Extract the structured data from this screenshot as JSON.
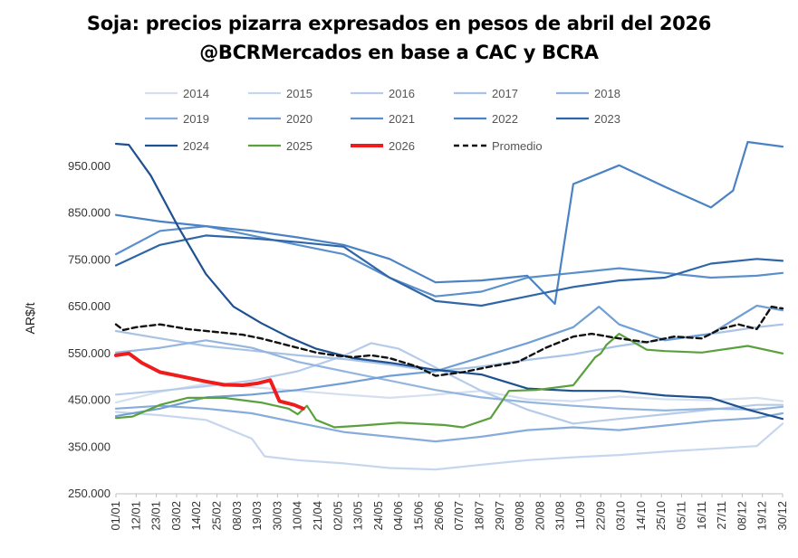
{
  "title_line1": "Soja: precios pizarra  expresados en pesos de abril del 2026",
  "title_line2": "@BCRMercados en base a CAC y BCRA",
  "chart_data": {
    "type": "line",
    "title": "Soja: precios pizarra  expresados en pesos de abril del 2026 @BCRMercados en base a CAC y BCRA",
    "xlabel": "",
    "ylabel": "AR$/t",
    "ylim": [
      250000,
      1000000
    ],
    "yticks": [
      {
        "value": 250000,
        "label": "250.000"
      },
      {
        "value": 350000,
        "label": "350.000"
      },
      {
        "value": 450000,
        "label": "450.000"
      },
      {
        "value": 550000,
        "label": "550.000"
      },
      {
        "value": 650000,
        "label": "650.000"
      },
      {
        "value": 750000,
        "label": "750.000"
      },
      {
        "value": 850000,
        "label": "850.000"
      },
      {
        "value": 950000,
        "label": "950.000"
      }
    ],
    "x_tick_labels": [
      "01/01",
      "12/01",
      "23/01",
      "03/02",
      "14/02",
      "25/02",
      "08/03",
      "19/03",
      "30/03",
      "10/04",
      "21/04",
      "02/05",
      "13/05",
      "24/05",
      "04/06",
      "15/06",
      "26/06",
      "07/07",
      "18/07",
      "29/07",
      "09/08",
      "20/08",
      "31/08",
      "11/09",
      "22/09",
      "03/10",
      "14/10",
      "25/10",
      "05/11",
      "16/11",
      "27/11",
      "08/12",
      "19/12",
      "30/12"
    ],
    "x_day_of_year": [
      1,
      12,
      23,
      34,
      45,
      56,
      67,
      78,
      89,
      100,
      111,
      122,
      133,
      144,
      155,
      166,
      177,
      188,
      199,
      210,
      221,
      232,
      243,
      254,
      265,
      276,
      287,
      298,
      309,
      320,
      331,
      342,
      353,
      364
    ],
    "series": [
      {
        "name": "2014",
        "color": "#d4dff0",
        "x": [
          1,
          25,
          50,
          75,
          100,
          125,
          150,
          175,
          200,
          225,
          250,
          275,
          300,
          325,
          350,
          364
        ],
        "values": [
          445000,
          468000,
          485000,
          478000,
          470000,
          462000,
          455000,
          462000,
          470000,
          452000,
          448000,
          458000,
          452000,
          450000,
          455000,
          448000
        ]
      },
      {
        "name": "2015",
        "color": "#c6d6ee",
        "x": [
          1,
          25,
          50,
          75,
          82,
          100,
          125,
          150,
          175,
          200,
          225,
          250,
          275,
          300,
          325,
          350,
          364
        ],
        "values": [
          425000,
          418000,
          408000,
          368000,
          330000,
          322000,
          315000,
          305000,
          302000,
          312000,
          322000,
          328000,
          333000,
          340000,
          346000,
          352000,
          400000
        ]
      },
      {
        "name": "2016",
        "color": "#b5cbe9",
        "x": [
          1,
          25,
          50,
          75,
          100,
          125,
          140,
          155,
          175,
          200,
          225,
          250,
          275,
          300,
          325,
          350,
          364
        ],
        "values": [
          462000,
          470000,
          480000,
          492000,
          512000,
          545000,
          572000,
          560000,
          520000,
          470000,
          430000,
          400000,
          410000,
          420000,
          430000,
          440000,
          440000
        ]
      },
      {
        "name": "2017",
        "color": "#a8c3e6",
        "x": [
          1,
          25,
          50,
          75,
          100,
          125,
          150,
          175,
          200,
          225,
          250,
          275,
          300,
          325,
          350,
          364
        ],
        "values": [
          598000,
          582000,
          566000,
          556000,
          546000,
          538000,
          526000,
          512000,
          522000,
          536000,
          548000,
          566000,
          580000,
          592000,
          606000,
          612000
        ]
      },
      {
        "name": "2018",
        "color": "#94b5df",
        "x": [
          1,
          25,
          50,
          75,
          100,
          125,
          150,
          175,
          200,
          225,
          250,
          275,
          300,
          325,
          350,
          364
        ],
        "values": [
          552000,
          562000,
          578000,
          562000,
          532000,
          512000,
          492000,
          472000,
          456000,
          446000,
          438000,
          432000,
          428000,
          432000,
          430000,
          436000
        ]
      },
      {
        "name": "2019",
        "color": "#86acdb",
        "x": [
          1,
          25,
          50,
          75,
          100,
          125,
          150,
          175,
          200,
          225,
          250,
          275,
          300,
          325,
          350,
          364
        ],
        "values": [
          432000,
          438000,
          432000,
          422000,
          402000,
          382000,
          372000,
          362000,
          372000,
          386000,
          392000,
          386000,
          396000,
          406000,
          412000,
          422000
        ]
      },
      {
        "name": "2020",
        "color": "#6f9fd4",
        "x": [
          1,
          25,
          50,
          75,
          100,
          125,
          150,
          175,
          200,
          225,
          250,
          264,
          275,
          300,
          325,
          350,
          364
        ],
        "values": [
          416000,
          432000,
          456000,
          462000,
          472000,
          486000,
          502000,
          512000,
          542000,
          572000,
          606000,
          650000,
          612000,
          578000,
          592000,
          652000,
          642000
        ]
      },
      {
        "name": "2021",
        "color": "#5a8fcc",
        "x": [
          1,
          25,
          50,
          75,
          100,
          125,
          150,
          175,
          200,
          225,
          250,
          275,
          300,
          325,
          350,
          364
        ],
        "values": [
          762000,
          812000,
          822000,
          802000,
          782000,
          762000,
          712000,
          672000,
          682000,
          712000,
          722000,
          732000,
          722000,
          712000,
          716000,
          722000
        ]
      },
      {
        "name": "2022",
        "color": "#4a82c4",
        "x": [
          1,
          25,
          50,
          75,
          100,
          125,
          150,
          175,
          200,
          225,
          240,
          250,
          275,
          300,
          325,
          337,
          345,
          364
        ],
        "values": [
          846000,
          832000,
          822000,
          812000,
          798000,
          782000,
          752000,
          702000,
          706000,
          716000,
          656000,
          912000,
          952000,
          906000,
          862000,
          898000,
          1002000,
          992000
        ]
      },
      {
        "name": "2023",
        "color": "#2f66a8",
        "x": [
          1,
          25,
          50,
          75,
          100,
          125,
          150,
          175,
          200,
          225,
          250,
          275,
          300,
          325,
          350,
          364
        ],
        "values": [
          738000,
          782000,
          802000,
          796000,
          788000,
          778000,
          712000,
          662000,
          652000,
          672000,
          692000,
          706000,
          712000,
          742000,
          752000,
          748000
        ]
      },
      {
        "name": "2024",
        "color": "#1f5090",
        "x": [
          1,
          8,
          20,
          35,
          50,
          65,
          80,
          95,
          110,
          130,
          150,
          175,
          200,
          225,
          250,
          275,
          300,
          325,
          345,
          364
        ],
        "values": [
          998000,
          996000,
          930000,
          820000,
          720000,
          650000,
          615000,
          585000,
          560000,
          540000,
          530000,
          515000,
          505000,
          475000,
          470000,
          470000,
          460000,
          455000,
          430000,
          410000
        ]
      },
      {
        "name": "2025",
        "color": "#5aa03c",
        "x": [
          1,
          10,
          25,
          40,
          60,
          80,
          95,
          100,
          105,
          110,
          120,
          135,
          155,
          165,
          180,
          190,
          205,
          215,
          230,
          250,
          262,
          265,
          268,
          275,
          290,
          300,
          320,
          345,
          364
        ],
        "values": [
          412000,
          415000,
          440000,
          455000,
          455000,
          445000,
          432000,
          420000,
          438000,
          408000,
          392000,
          396000,
          402000,
          400000,
          397000,
          392000,
          412000,
          470000,
          472000,
          482000,
          542000,
          550000,
          568000,
          592000,
          558000,
          555000,
          552000,
          566000,
          550000
        ]
      },
      {
        "name": "2026",
        "color": "#ee1c1c",
        "x": [
          1,
          8,
          15,
          25,
          35,
          50,
          60,
          70,
          78,
          85,
          90,
          98,
          103
        ],
        "values": [
          546000,
          550000,
          530000,
          510000,
          502000,
          490000,
          483000,
          482000,
          486000,
          493000,
          448000,
          440000,
          432000
        ]
      },
      {
        "name": "Promedio",
        "color": "#111111",
        "dashed": true,
        "x": [
          1,
          5,
          12,
          25,
          40,
          55,
          70,
          80,
          90,
          100,
          110,
          120,
          130,
          140,
          150,
          165,
          175,
          190,
          205,
          220,
          235,
          250,
          260,
          275,
          290,
          305,
          320,
          330,
          340,
          350,
          358,
          364
        ],
        "values": [
          612000,
          600000,
          606000,
          612000,
          602000,
          596000,
          590000,
          582000,
          572000,
          562000,
          552000,
          546000,
          542000,
          546000,
          540000,
          522000,
          502000,
          510000,
          522000,
          532000,
          562000,
          586000,
          592000,
          582000,
          574000,
          586000,
          582000,
          602000,
          612000,
          602000,
          650000,
          646000
        ]
      }
    ]
  }
}
